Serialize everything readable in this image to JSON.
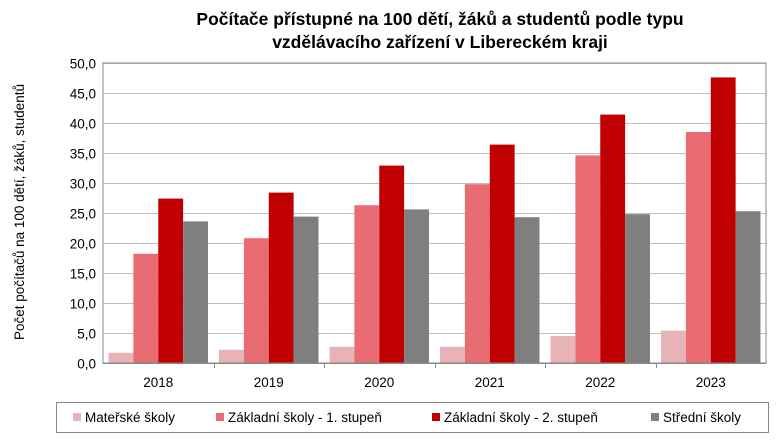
{
  "chart_data": {
    "type": "bar",
    "title_line1": "Počítače přístupné na 100 dětí, žáků a studentů podle typu",
    "title_line2": "vzdělávacího zařízení v Libereckém kraji",
    "xlabel": "",
    "ylabel": "Počet počítačů na 100 dětí, žáků, studentů",
    "ylim": [
      0,
      50
    ],
    "ytick_values": [
      0,
      5,
      10,
      15,
      20,
      25,
      30,
      35,
      40,
      45,
      50
    ],
    "ytick_labels": [
      "0,0",
      "5,0",
      "10,0",
      "15,0",
      "20,0",
      "25,0",
      "30,0",
      "35,0",
      "40,0",
      "45,0",
      "50,0"
    ],
    "categories": [
      "2018",
      "2019",
      "2020",
      "2021",
      "2022",
      "2023"
    ],
    "series": [
      {
        "name": "Mateřské školy",
        "color": "#E8B3B7",
        "values": [
          1.7,
          2.2,
          2.7,
          2.7,
          4.5,
          5.4
        ]
      },
      {
        "name": "Základní školy - 1. stupeň",
        "color": "#E96C72",
        "values": [
          18.2,
          20.8,
          26.3,
          29.8,
          34.6,
          38.5
        ]
      },
      {
        "name": "Základní školy - 2. stupeň",
        "color": "#C00000",
        "values": [
          27.4,
          28.4,
          32.9,
          36.4,
          41.4,
          47.6
        ]
      },
      {
        "name": "Střední školy",
        "color": "#7F7F7F",
        "values": [
          23.6,
          24.4,
          25.6,
          24.3,
          24.8,
          25.3
        ]
      }
    ],
    "grid": true,
    "legend_position": "bottom"
  }
}
